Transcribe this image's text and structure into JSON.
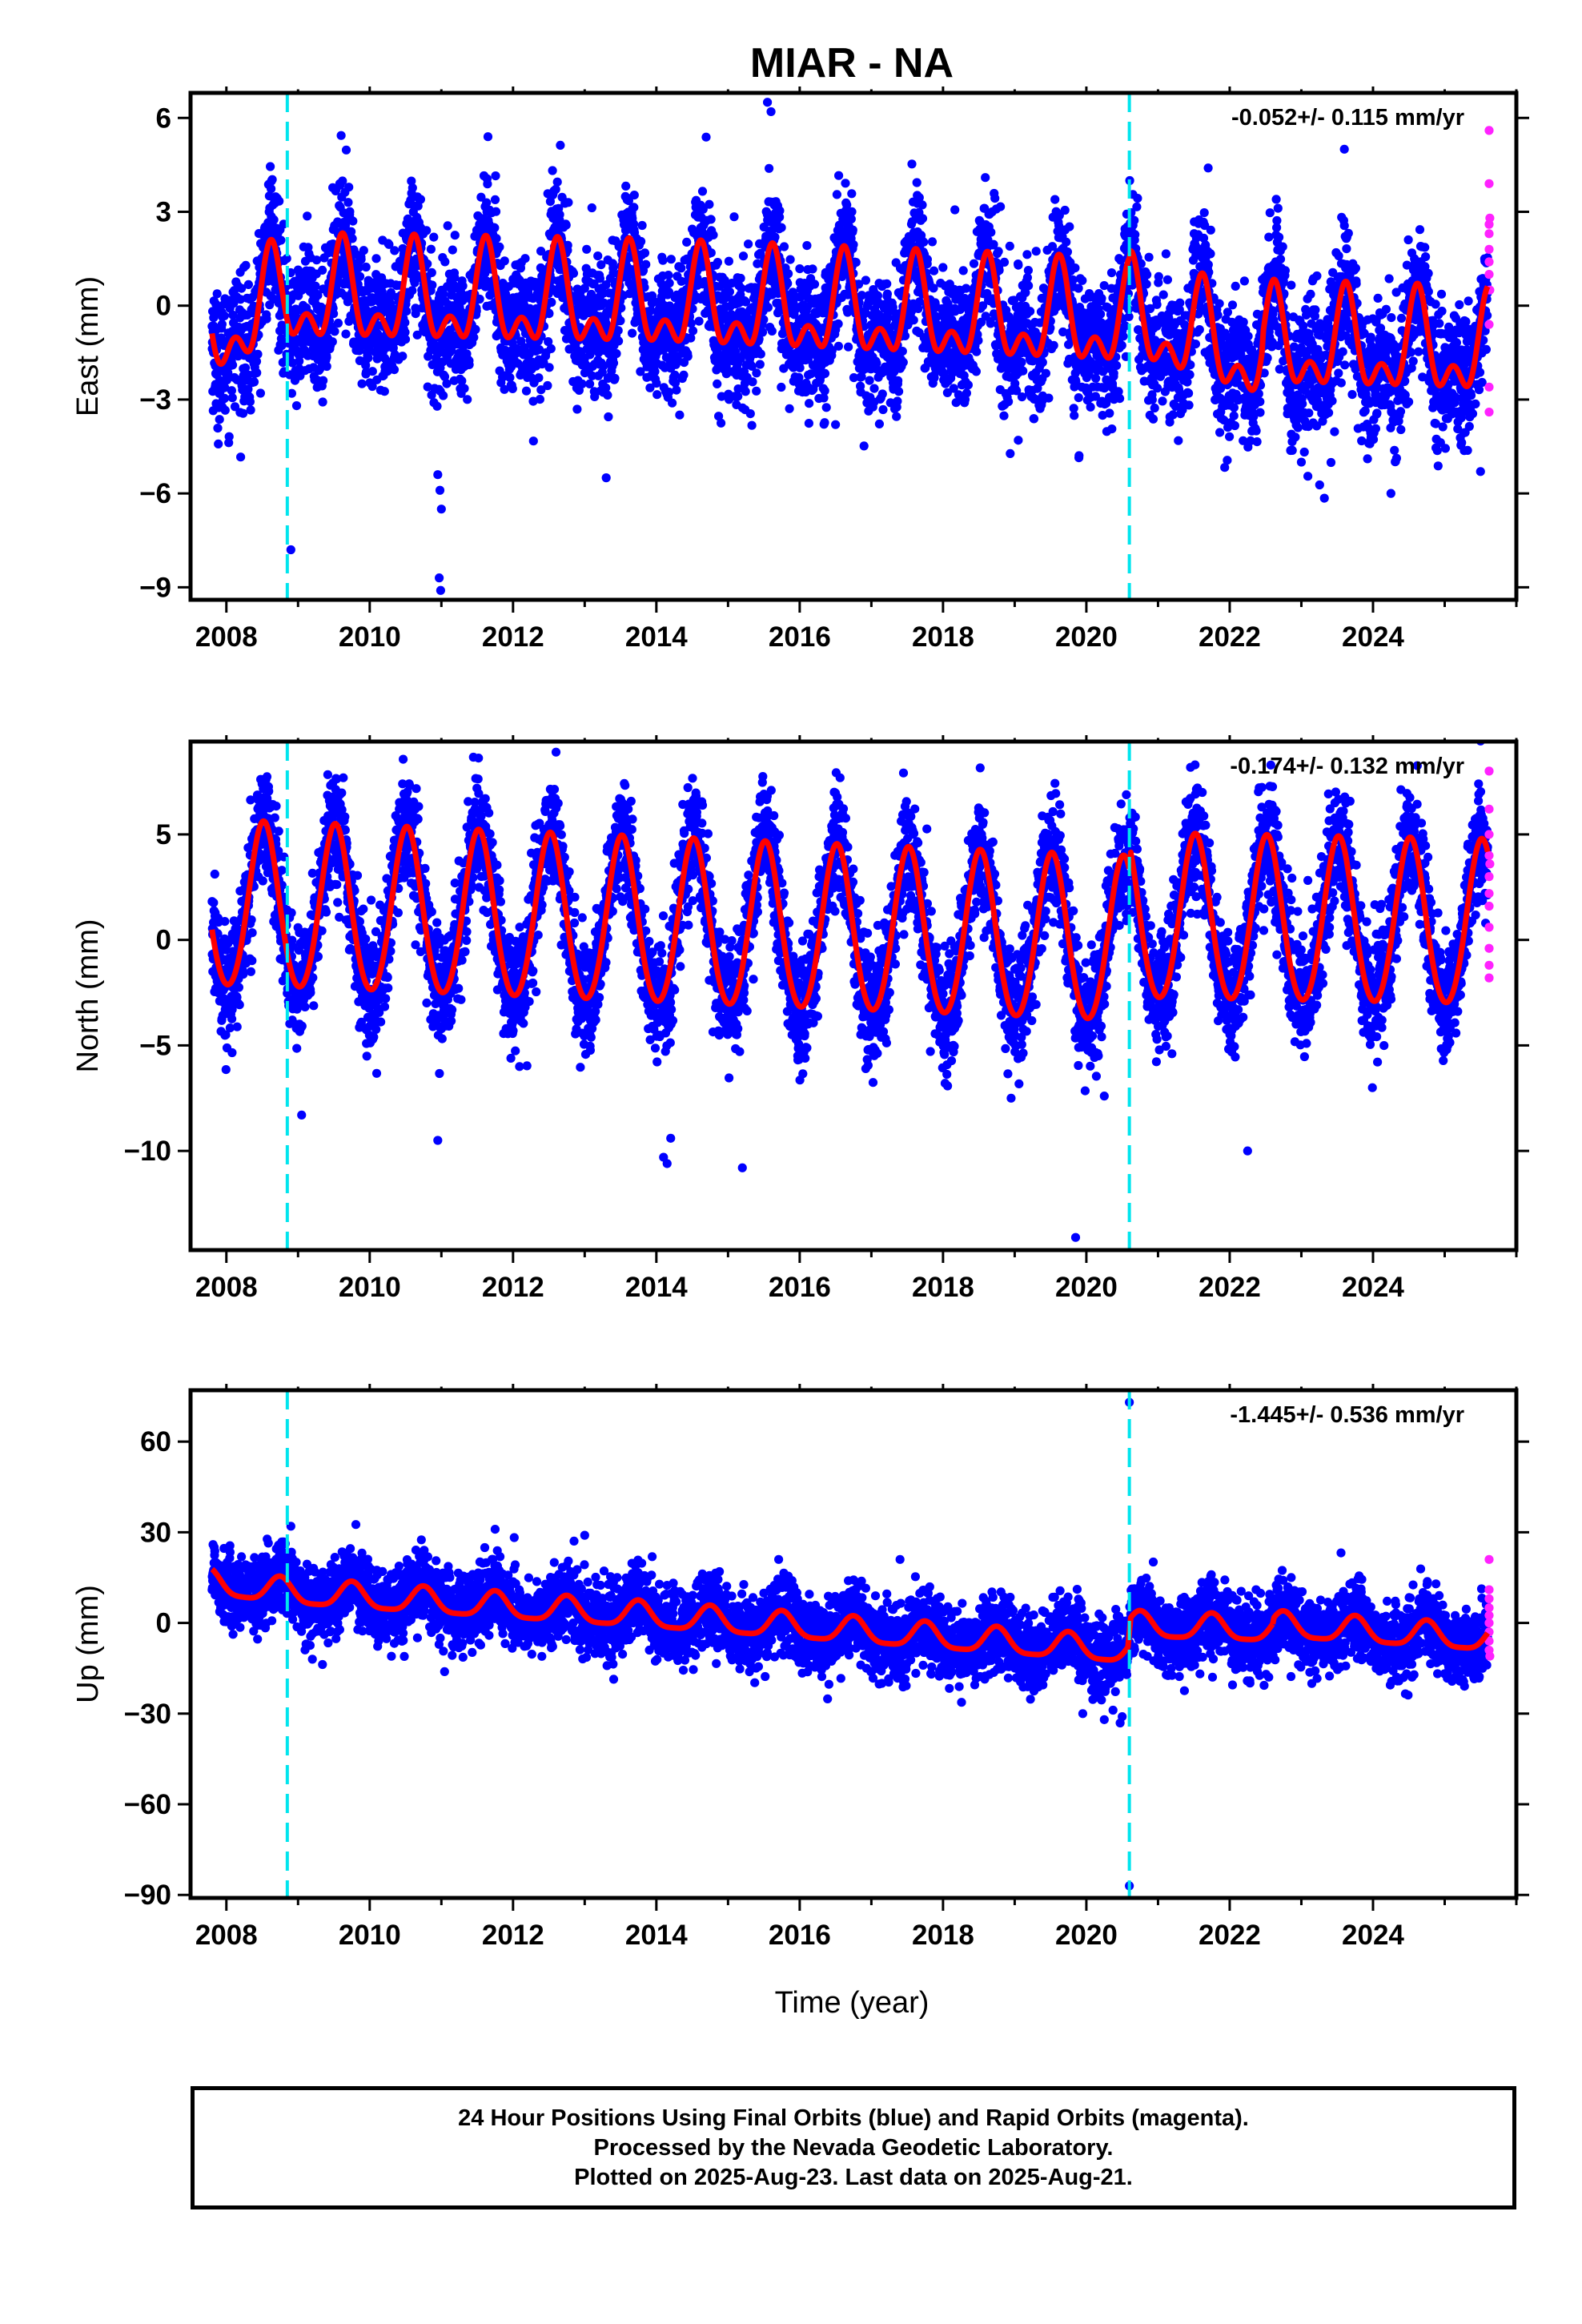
{
  "title": "MIAR - NA",
  "xlabel": "Time (year)",
  "footer": {
    "line1": "24 Hour Positions Using Final Orbits (blue) and Rapid Orbits (magenta).",
    "line2": "Processed by the Nevada Geodetic Laboratory.",
    "line3": "Plotted on 2025-Aug-23. Last data on 2025-Aug-21."
  },
  "colors": {
    "final_orbits": "#0000ff",
    "rapid_orbits": "#ff22ff",
    "model_fit": "#ff0000",
    "offset_lines": "#00e5ee",
    "frame": "#000000"
  },
  "chart_data": [
    {
      "type": "scatter",
      "panel": "East",
      "ylabel": "East (mm)",
      "rate_text": "-0.052+/- 0.115 mm/yr",
      "xlim": [
        2007.5,
        2026.0
      ],
      "ylim": [
        -9.4,
        6.8
      ],
      "x_ticks": [
        2008,
        2010,
        2012,
        2014,
        2016,
        2018,
        2020,
        2022,
        2024
      ],
      "y_ticks": [
        6,
        3,
        0,
        -3,
        -6,
        -9
      ],
      "y_tick_labels": [
        "6",
        "3",
        "0",
        "−3",
        "−6",
        "−9"
      ],
      "offset_lines_x": [
        2008.85,
        2020.6
      ],
      "model": {
        "name": "model fit",
        "segments": [
          [
            2007.8,
            2008.85
          ],
          [
            2008.85,
            2020.6
          ],
          [
            2020.6,
            2022.45
          ],
          [
            2022.45,
            2025.6
          ]
        ],
        "base_points": [
          [
            2007.8,
            -0.9
          ],
          [
            2008.85,
            0.2
          ],
          [
            2014.0,
            0.0
          ],
          [
            2020.6,
            -0.6
          ],
          [
            2020.62,
            -0.4
          ],
          [
            2022.45,
            -1.7
          ],
          [
            2022.47,
            -1.3
          ],
          [
            2025.6,
            -1.5
          ]
        ],
        "annual_amplitude": 1.3,
        "semiannual_amplitude": 0.85,
        "peak_phase": 0.62,
        "semi_phase": 0.62
      },
      "scatter_noise_sd": 1.05,
      "outliers": [
        [
          2008.9,
          -7.8
        ],
        [
          2010.95,
          -5.4
        ],
        [
          2010.98,
          -5.9
        ],
        [
          2011.0,
          -6.5
        ],
        [
          2010.97,
          -8.7
        ],
        [
          2010.99,
          -9.1
        ],
        [
          2013.3,
          -5.5
        ],
        [
          2015.55,
          6.5
        ],
        [
          2015.6,
          6.2
        ],
        [
          2023.6,
          5.0
        ],
        [
          2021.7,
          4.4
        ],
        [
          2023.0,
          -5.0
        ],
        [
          2024.25,
          -6.0
        ],
        [
          2025.5,
          -5.3
        ],
        [
          2009.7,
          3.3
        ],
        [
          2011.65,
          5.4
        ],
        [
          2016.5,
          -3.8
        ],
        [
          2019.05,
          -4.3
        ]
      ],
      "rapid": [
        [
          2025.62,
          5.6
        ],
        [
          2025.62,
          3.9
        ],
        [
          2025.62,
          2.6
        ],
        [
          2025.62,
          2.3
        ],
        [
          2025.62,
          1.8
        ],
        [
          2025.62,
          1.4
        ],
        [
          2025.62,
          1.0
        ],
        [
          2025.62,
          -0.6
        ],
        [
          2025.62,
          -2.6
        ],
        [
          2025.62,
          -3.4
        ],
        [
          2025.63,
          2.8
        ],
        [
          2025.63,
          0.5
        ]
      ]
    },
    {
      "type": "scatter",
      "panel": "North",
      "ylabel": "North (mm)",
      "rate_text": "-0.174+/- 0.132 mm/yr",
      "xlim": [
        2007.5,
        2026.0
      ],
      "ylim": [
        -14.7,
        9.4
      ],
      "x_ticks": [
        2008,
        2010,
        2012,
        2014,
        2016,
        2018,
        2020,
        2022,
        2024
      ],
      "y_ticks": [
        5,
        0,
        -5,
        -10
      ],
      "y_tick_labels": [
        "5",
        "0",
        "−5",
        "−10"
      ],
      "offset_lines_x": [
        2008.85,
        2020.6
      ],
      "model": {
        "name": "model fit",
        "segments": [
          [
            2007.8,
            2008.85
          ],
          [
            2008.85,
            2020.6
          ],
          [
            2020.6,
            2025.6
          ]
        ],
        "base_points": [
          [
            2007.8,
            1.5
          ],
          [
            2008.85,
            1.4
          ],
          [
            2020.6,
            -0.2
          ],
          [
            2020.62,
            0.9
          ],
          [
            2025.6,
            0.6
          ]
        ],
        "annual_amplitude": 3.9,
        "semiannual_amplitude": 0.3,
        "peak_phase": 0.52,
        "semi_phase": 0.52
      },
      "scatter_noise_sd": 1.35,
      "outliers": [
        [
          2012.6,
          8.9
        ],
        [
          2019.85,
          -14.1
        ],
        [
          2014.1,
          -10.3
        ],
        [
          2014.15,
          -10.6
        ],
        [
          2014.2,
          -9.4
        ],
        [
          2015.2,
          -10.8
        ],
        [
          2010.95,
          -9.5
        ],
        [
          2022.25,
          -10.0
        ],
        [
          2009.05,
          -8.3
        ],
        [
          2020.25,
          -7.4
        ],
        [
          2018.95,
          -7.5
        ],
        [
          2010.55,
          7.4
        ],
        [
          2014.55,
          6.3
        ],
        [
          2021.55,
          7.2
        ]
      ],
      "rapid": [
        [
          2025.62,
          8.0
        ],
        [
          2025.62,
          6.2
        ],
        [
          2025.62,
          5.0
        ],
        [
          2025.62,
          4.0
        ],
        [
          2025.62,
          3.0
        ],
        [
          2025.62,
          2.2
        ],
        [
          2025.62,
          1.6
        ],
        [
          2025.62,
          0.6
        ],
        [
          2025.62,
          -0.4
        ],
        [
          2025.62,
          -1.2
        ],
        [
          2025.62,
          -1.8
        ],
        [
          2025.63,
          3.6
        ]
      ]
    },
    {
      "type": "scatter",
      "panel": "Up",
      "ylabel": "Up (mm)",
      "rate_text": "-1.445+/- 0.536 mm/yr",
      "xlim": [
        2007.5,
        2026.0
      ],
      "ylim": [
        -91.0,
        77.0
      ],
      "x_ticks": [
        2008,
        2010,
        2012,
        2014,
        2016,
        2018,
        2020,
        2022,
        2024
      ],
      "y_ticks": [
        60,
        30,
        0,
        -30,
        -60,
        -90
      ],
      "y_tick_labels": [
        "60",
        "30",
        "0",
        "−30",
        "−60",
        "−90"
      ],
      "offset_lines_x": [
        2008.85,
        2020.6
      ],
      "model": {
        "name": "model fit",
        "segments": [
          [
            2007.8,
            2008.85
          ],
          [
            2008.85,
            2020.6
          ],
          [
            2020.6,
            2022.6
          ],
          [
            2022.6,
            2025.6
          ]
        ],
        "base_points": [
          [
            2007.8,
            13.0
          ],
          [
            2008.85,
            10.0
          ],
          [
            2014.0,
            2.0
          ],
          [
            2020.58,
            -9.5
          ],
          [
            2020.62,
            -1.0
          ],
          [
            2022.6,
            -2.5
          ],
          [
            2022.62,
            -1.0
          ],
          [
            2025.6,
            -5.5
          ]
        ],
        "annual_amplitude": 4.2,
        "semiannual_amplitude": 1.0,
        "peak_phase": 0.75,
        "semi_phase": 0.75
      },
      "scatter_noise_sd": 6.0,
      "outliers": [
        [
          2020.6,
          73.0
        ],
        [
          2020.6,
          -87.0
        ],
        [
          2008.9,
          32.0
        ],
        [
          2011.75,
          31.0
        ],
        [
          2013.0,
          29.0
        ],
        [
          2017.4,
          21.0
        ],
        [
          2019.95,
          -30.0
        ],
        [
          2020.25,
          -32.0
        ],
        [
          2020.5,
          -31.0
        ],
        [
          2009.2,
          -12.0
        ]
      ],
      "rapid": [
        [
          2025.62,
          21.0
        ],
        [
          2025.62,
          11.0
        ],
        [
          2025.62,
          8.0
        ],
        [
          2025.62,
          5.0
        ],
        [
          2025.62,
          2.5
        ],
        [
          2025.62,
          0.0
        ],
        [
          2025.62,
          -3.0
        ],
        [
          2025.62,
          -6.0
        ],
        [
          2025.62,
          -9.0
        ],
        [
          2025.63,
          -11.0
        ]
      ]
    }
  ]
}
